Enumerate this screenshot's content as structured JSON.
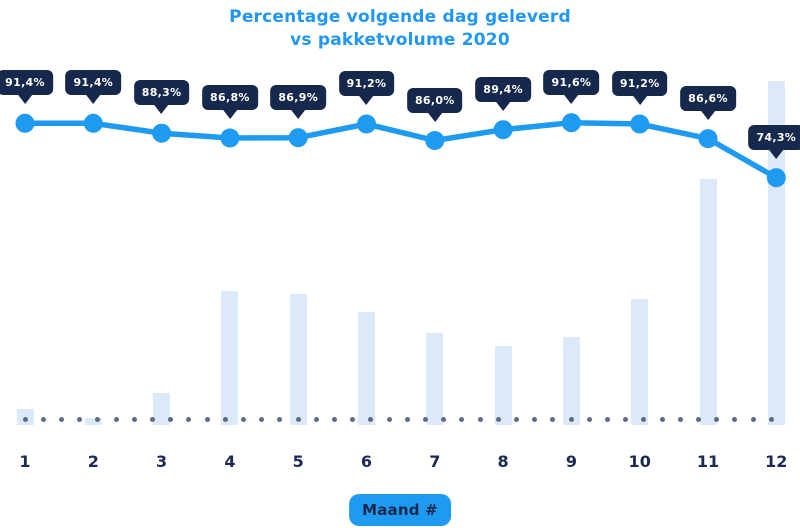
{
  "title": {
    "line1": "Percentage volgende dag geleverd",
    "line2": "vs pakketvolume 2020"
  },
  "x_axis_label_badge": "Maand #",
  "colors": {
    "accent_blue": "#1e9af0",
    "title_blue": "#2196f3",
    "bar_fill": "#dbe9f8",
    "tooltip_navy": "#16294d",
    "axis_label_navy": "#1b2a52",
    "baseline_dot_slate": "#5c6b88",
    "tooltip_text": "#ffffff",
    "background": "#ffffff"
  },
  "chart_data": {
    "type": "line+bar combo",
    "title": "Percentage volgende dag geleverd vs pakketvolume 2020",
    "xlabel": "Maand #",
    "categories": [
      "1",
      "2",
      "3",
      "4",
      "5",
      "6",
      "7",
      "8",
      "9",
      "10",
      "11",
      "12"
    ],
    "series": [
      {
        "name": "Percentage volgende dag geleverd",
        "type": "line",
        "unit": "%",
        "values": [
          91.4,
          91.4,
          88.3,
          86.8,
          86.9,
          91.2,
          86.0,
          89.4,
          91.6,
          91.2,
          86.6,
          74.3
        ],
        "point_labels": [
          "91,4%",
          "91,4%",
          "88,3%",
          "86,8%",
          "86,9%",
          "91,2%",
          "86,0%",
          "89,4%",
          "91,6%",
          "91,2%",
          "86,6%",
          "74,3%"
        ]
      },
      {
        "name": "Pakketvolume 2020",
        "type": "bar",
        "unit": "relative volume, % of max (estimated; no y-axis shown)",
        "values": [
          4.7,
          2.0,
          9.3,
          39.0,
          38.1,
          32.8,
          26.7,
          23.0,
          25.6,
          36.6,
          71.5,
          100.0
        ]
      }
    ],
    "legend": "none",
    "y_axis": "hidden",
    "grid": "dotted horizontal baseline"
  }
}
